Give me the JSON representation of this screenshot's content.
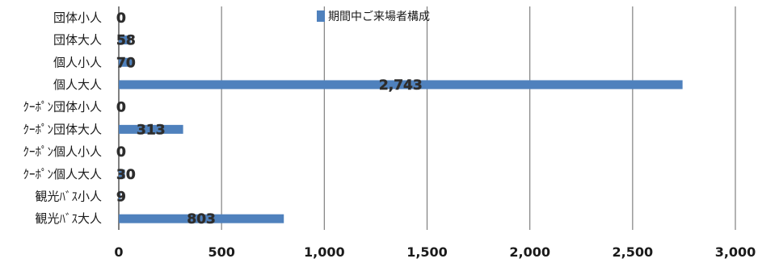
{
  "chart_data": {
    "type": "bar",
    "orientation": "horizontal",
    "categories": [
      "団体小人",
      "団体大人",
      "個人小人",
      "個人大人",
      "ｸｰﾎﾟﾝ団体小人",
      "ｸｰﾎﾟﾝ団体大人",
      "ｸｰﾎﾟﾝ個人小人",
      "ｸｰﾎﾟﾝ個人大人",
      "観光ﾊﾞｽ小人",
      "観光ﾊﾞｽ大人"
    ],
    "series": [
      {
        "name": "期間中ご来場者構成",
        "values": [
          0,
          58,
          70,
          2743,
          0,
          313,
          0,
          30,
          9,
          803
        ],
        "labels": [
          "0",
          "58",
          "70",
          "2,743",
          "0",
          "313",
          "0",
          "30",
          "9",
          "803"
        ]
      }
    ],
    "xlim": [
      0,
      3000
    ],
    "ticks": [
      0,
      500,
      1000,
      1500,
      2000,
      2500,
      3000
    ],
    "tick_labels": [
      "0",
      "500",
      "1,000",
      "1,500",
      "2,000",
      "2,500",
      "3,000"
    ],
    "title": "",
    "xlabel": "",
    "ylabel": "",
    "grid": "vertical",
    "legend_position": "top",
    "bar_color": "#4f81bd",
    "grid_color": "#808080"
  }
}
